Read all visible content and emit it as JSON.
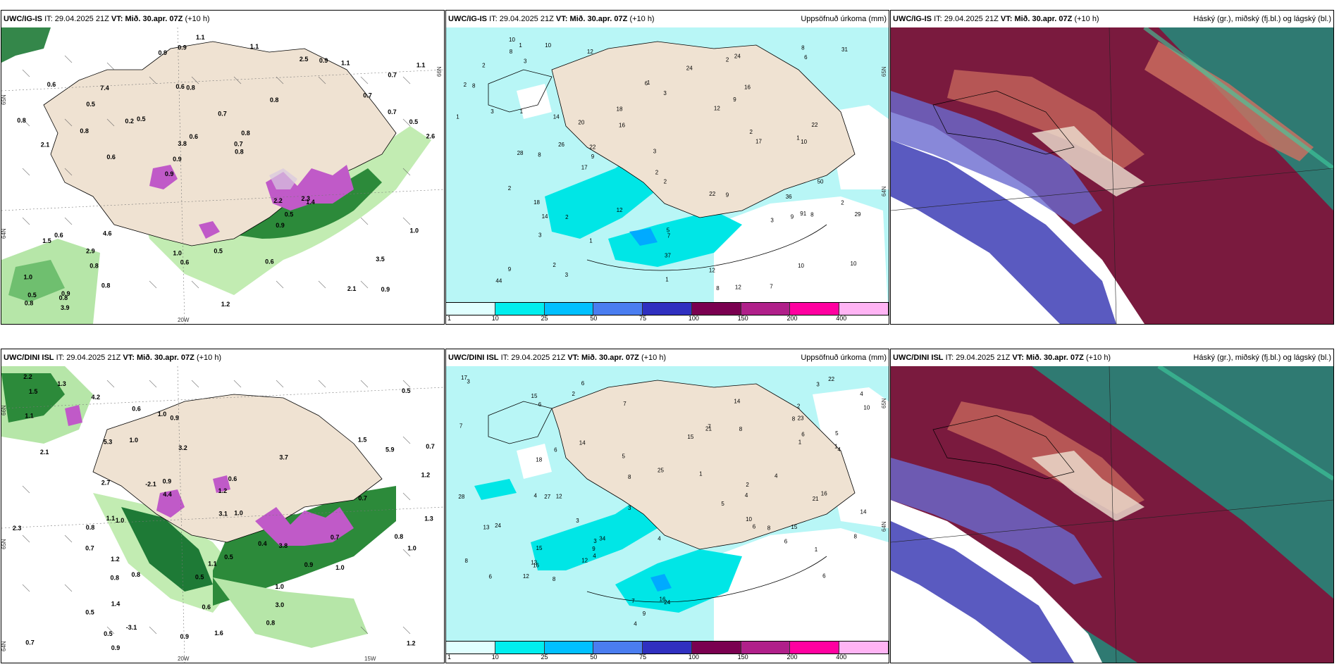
{
  "panels": [
    {
      "id": "r1c1",
      "model": "UWC/IG-IS",
      "it_label": "IT:",
      "it_value": "29.04.2025 21Z",
      "vt_label": "VT:",
      "vt_value": "Mið. 30.apr. 07Z",
      "lead": "(+10 h)",
      "right_title": "",
      "axis_labels": [
        "65N",
        "66N",
        "64N",
        "20W"
      ],
      "values": [
        "0.9",
        "2.1",
        "0.7",
        "0.9",
        "0.8",
        "0.9",
        "0.6",
        "0.7",
        "0.6",
        "0.5",
        "1.0",
        "0.8",
        "0.8",
        "0.8",
        "1.4",
        "0.6",
        "0.9",
        "2.6",
        "2.2",
        "0.7",
        "0.9",
        "1.0",
        "3.8",
        "7.4",
        "2.5",
        "4.6",
        "2.1",
        "3.5",
        "2.3",
        "1.2",
        "0.2",
        "0.8",
        "0.9",
        "0.8",
        "0.5",
        "0.7",
        "0.5",
        "0.6",
        "0.8",
        "1.5",
        "0.7",
        "1.1",
        "0.5",
        "0.6",
        "2.9",
        "3.9",
        "0.8",
        "0.5",
        "1.1",
        "1.1",
        "0.6",
        "0.8",
        "0.5",
        "0.9",
        "0.8",
        "1.1",
        "0.9",
        "0.6",
        "1.0"
      ]
    },
    {
      "id": "r1c2",
      "model": "UWC/IG-IS",
      "it_label": "IT:",
      "it_value": "29.04.2025 21Z",
      "vt_label": "VT:",
      "vt_value": "Mið. 30.apr. 07Z",
      "lead": "(+10 h)",
      "right_title": "Uppsöfnuð úrkoma (mm)",
      "axis_labels": [
        "65N",
        "64N"
      ],
      "values": [
        "2",
        "7",
        "7",
        "9",
        "5",
        "20",
        "12",
        "16",
        "8",
        "10",
        "9",
        "6",
        "1",
        "2",
        "3",
        "3",
        "3",
        "2",
        "2",
        "1",
        "3",
        "36",
        "10",
        "28",
        "31",
        "12",
        "3",
        "12",
        "18",
        "26",
        "37",
        "22",
        "10",
        "12",
        "29",
        "8",
        "8",
        "8",
        "9",
        "10",
        "9",
        "9",
        "14",
        "10",
        "24",
        "22",
        "16",
        "22",
        "24",
        "12",
        "17",
        "17",
        "18",
        "91",
        "44",
        "50",
        "14",
        "8",
        "6",
        "8",
        "1",
        "3",
        "2",
        "3",
        "2",
        "2",
        "1",
        "1",
        "1",
        "2",
        "2",
        "2",
        "1"
      ],
      "colorbar": {
        "colors": [
          "#e0ffff",
          "#00eeee",
          "#00c0ff",
          "#4a7df0",
          "#3030c0",
          "#7a0050",
          "#b0208a",
          "#ff00a0",
          "#ffb4f4"
        ],
        "labels": [
          "1",
          "10",
          "25",
          "50",
          "75",
          "100",
          "150",
          "200",
          "400"
        ]
      }
    },
    {
      "id": "r1c3",
      "model": "UWC/IG-IS",
      "it_label": "IT:",
      "it_value": "29.04.2025 21Z",
      "vt_label": "VT:",
      "vt_value": "Mið. 30.apr. 07Z",
      "lead": "(+10 h)",
      "right_title": "Háský (gr.), miðský (fj.bl.) og lágský (bl.)"
    },
    {
      "id": "r2c1",
      "model": "UWC/DINI ISL",
      "it_label": "IT:",
      "it_value": "29.04.2025 21Z",
      "vt_label": "VT:",
      "vt_value": "Mið. 30.apr. 07Z",
      "lead": "(+10 h)",
      "right_title": "",
      "axis_labels": [
        "66N",
        "65N",
        "64N",
        "20W",
        "15W"
      ],
      "values": [
        "1.5",
        "2.2",
        "2.3",
        "0.5",
        "0.7",
        "1.0",
        "0.9",
        "0.8",
        "0.7",
        "0.9",
        "0.8",
        "1.0",
        "0.9",
        "0.7",
        "1.1",
        "-2.1",
        "0.5",
        "0.5",
        "1.0",
        "0.9",
        "1.2",
        "0.6",
        "-3.1",
        "1.1",
        "0.8",
        "0.5",
        "1.2",
        "1.0",
        "0.9",
        "1.0",
        "0.4",
        "0.6",
        "5.9",
        "1.0",
        "3.1",
        "2.7",
        "4.2",
        "4.4",
        "3.0",
        "3.7",
        "5.3",
        "1.6",
        "3.8",
        "3.2",
        "1.3",
        "0.6",
        "1.4",
        "0.7",
        "0.8",
        "2.1",
        "1.3",
        "1.0",
        "0.5",
        "0.8",
        "0.7",
        "1.1",
        "1.2",
        "1.2",
        "1.5"
      ]
    },
    {
      "id": "r2c2",
      "model": "UWC/DINI ISL",
      "it_label": "IT:",
      "it_value": "29.04.2025 21Z",
      "vt_label": "VT:",
      "vt_value": "Mið. 30.apr. 07Z",
      "lead": "(+10 h)",
      "right_title": "Uppsöfnuð úrkoma (mm)",
      "axis_labels": [
        "65N",
        "64N"
      ],
      "values": [
        "6",
        "6",
        "7",
        "4",
        "6",
        "8",
        "6",
        "4",
        "15",
        "8",
        "21",
        "16",
        "2",
        "3",
        "3",
        "5",
        "12",
        "8",
        "12",
        "4",
        "8",
        "1",
        "2",
        "12",
        "3",
        "5",
        "4",
        "3",
        "22",
        "24",
        "23",
        "10",
        "27",
        "34",
        "24",
        "16",
        "18",
        "6",
        "7",
        "10",
        "13",
        "15",
        "15",
        "28",
        "25",
        "17",
        "21",
        "14",
        "16",
        "14",
        "13",
        "8",
        "4",
        "7",
        "8",
        "9",
        "6",
        "6",
        "4",
        "3",
        "5",
        "4",
        "9",
        "7",
        "4",
        "1",
        "1",
        "2",
        "1",
        "6",
        "8",
        "15",
        "14"
      ],
      "colorbar": {
        "colors": [
          "#e0ffff",
          "#00eeee",
          "#00c0ff",
          "#4a7df0",
          "#3030c0",
          "#7a0050",
          "#b0208a",
          "#ff00a0",
          "#ffb4f4"
        ],
        "labels": [
          "1",
          "10",
          "25",
          "50",
          "75",
          "100",
          "150",
          "200",
          "400"
        ]
      }
    },
    {
      "id": "r2c3",
      "model": "UWC/DINI ISL",
      "it_label": "IT:",
      "it_value": "29.04.2025 21Z",
      "vt_label": "VT:",
      "vt_value": "Mið. 30.apr. 07Z",
      "lead": "(+10 h)",
      "right_title": "Háský (gr.), miðský (fj.bl.) og lágský (bl.)"
    }
  ]
}
